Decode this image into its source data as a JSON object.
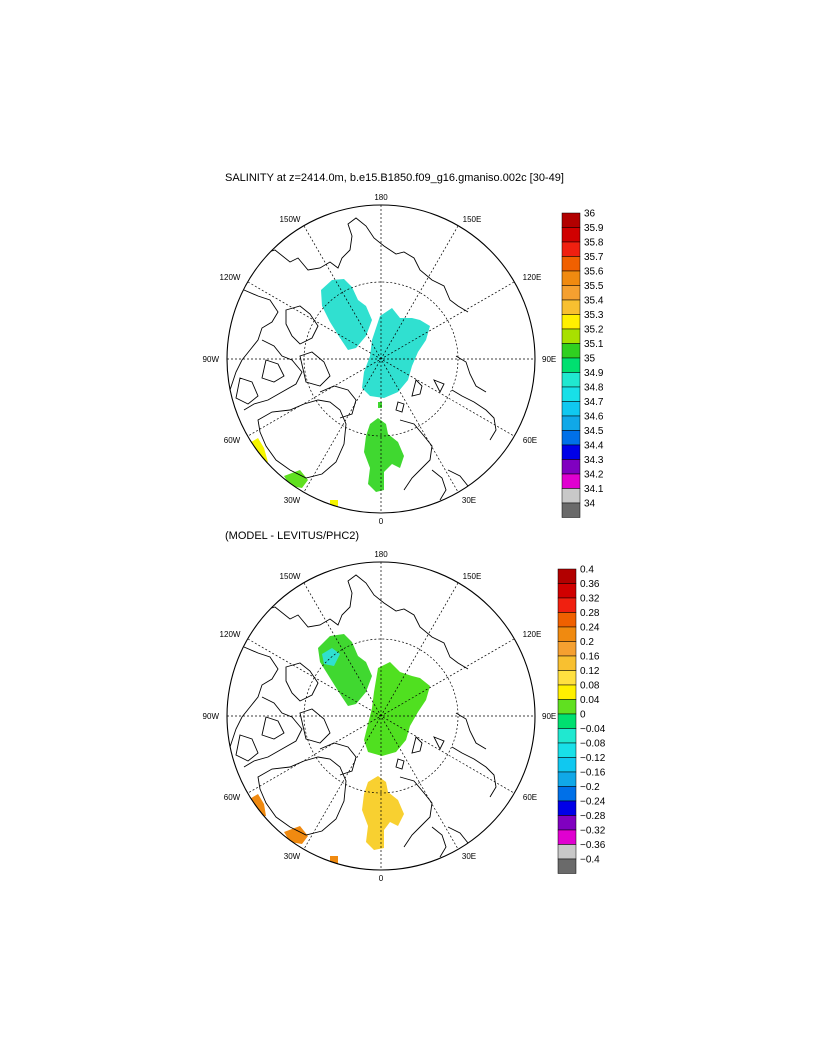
{
  "panels": [
    {
      "title": "SALINITY at z=2414.0m, b.e15.B1850.f09_g16.gmaniso.002c [30-49]",
      "lon_labels": {
        "top": "180",
        "bottom": "0",
        "left": "90W",
        "right": "90E",
        "nw": "150W",
        "ne": "150E",
        "wnw": "120W",
        "ene": "120E",
        "wsw": "60W",
        "ese": "60E",
        "sw": "30W",
        "se": "30E"
      },
      "colorbar": {
        "labels": [
          "36",
          "35.9",
          "35.8",
          "35.7",
          "35.6",
          "35.5",
          "35.4",
          "35.3",
          "35.2",
          "35.1",
          "35",
          "34.9",
          "34.8",
          "34.7",
          "34.6",
          "34.5",
          "34.4",
          "34.3",
          "34.2",
          "34.1",
          "34"
        ],
        "colors": [
          "#b20000",
          "#d00000",
          "#f02010",
          "#f06000",
          "#f08a10",
          "#f5a030",
          "#f8c030",
          "#fff000",
          "#a8e000",
          "#30d020",
          "#00e070",
          "#20e8d0",
          "#18e0e8",
          "#10c8f0",
          "#10a8e8",
          "#0070e8",
          "#0000e8",
          "#8000c0",
          "#e000d0",
          "#c8c8c8",
          "#6a6a6a"
        ]
      },
      "regions": [
        {
          "name": "north-pacific-side-blob",
          "color": "#30e0d0"
        },
        {
          "name": "central-arctic-blob",
          "color": "#30e0d0"
        },
        {
          "name": "atlantic-green-blob",
          "color": "#40d830"
        },
        {
          "name": "labrador-yellow",
          "color": "#f5f500"
        },
        {
          "name": "greenland-sea-green",
          "color": "#60e020"
        },
        {
          "name": "iceland-yellow",
          "color": "#f5f500"
        }
      ]
    },
    {
      "title": "(MODEL - LEVITUS/PHC2)",
      "lon_labels": {
        "top": "180",
        "bottom": "0",
        "left": "90W",
        "right": "90E",
        "nw": "150W",
        "ne": "150E",
        "wnw": "120W",
        "ene": "120E",
        "wsw": "60W",
        "ese": "60E",
        "sw": "30W",
        "se": "30E"
      },
      "colorbar": {
        "labels": [
          "0.4",
          "0.36",
          "0.32",
          "0.28",
          "0.24",
          "0.2",
          "0.16",
          "0.12",
          "0.08",
          "0.04",
          "0",
          "−0.04",
          "−0.08",
          "−0.12",
          "−0.16",
          "−0.2",
          "−0.24",
          "−0.28",
          "−0.32",
          "−0.36",
          "−0.4"
        ],
        "colors": [
          "#b20000",
          "#d00000",
          "#f02010",
          "#f06000",
          "#f08a10",
          "#f5a030",
          "#f8c030",
          "#ffe040",
          "#fff000",
          "#60e020",
          "#00e070",
          "#20e8d0",
          "#18e0e8",
          "#10c8f0",
          "#10a8e8",
          "#0070e8",
          "#0000e8",
          "#8000c0",
          "#e000d0",
          "#c8c8c8",
          "#6a6a6a"
        ]
      },
      "regions": [
        {
          "name": "pacific-side-green-blob",
          "color": "#40d830"
        },
        {
          "name": "central-green-blob",
          "color": "#50e020"
        },
        {
          "name": "atlantic-yellow-blob",
          "color": "#f8d030"
        },
        {
          "name": "labrador-orange",
          "color": "#f08a10"
        },
        {
          "name": "greenland-sea-orange",
          "color": "#f08a10"
        }
      ]
    }
  ]
}
